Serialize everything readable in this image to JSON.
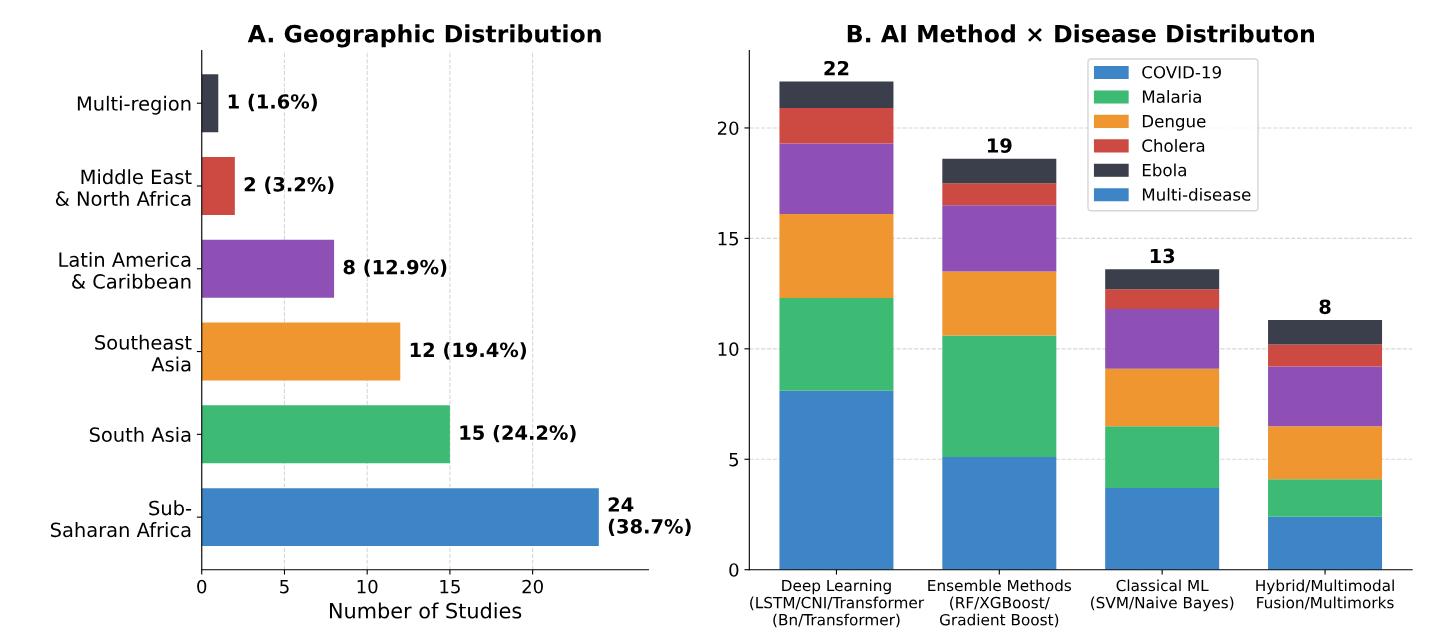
{
  "chart_data": [
    {
      "type": "bar",
      "title": "A. Geographic Distribution",
      "orientation": "horizontal",
      "xlabel": "Number of Studies",
      "categories": [
        "Multi-region",
        "Middle East\n& North Africa",
        "Latin America\n& Caribbean",
        "Southeast\nAsia",
        "South Asia",
        "Sub-\nSaharan Africa"
      ],
      "values": [
        1,
        2,
        8,
        12,
        15,
        24
      ],
      "colors": [
        "#3a3f4b",
        "#cc4a42",
        "#8e50b4",
        "#ef9630",
        "#3dba73",
        "#3d85c6"
      ],
      "value_labels": [
        "1 (1.6%)",
        "2 (3.2%)",
        "8 (12.9%)",
        "12 (19.4%)",
        "15 (24.2%)",
        "24\n(38.7%)"
      ],
      "xlim": [
        0,
        27
      ],
      "xticks": [
        0,
        5,
        10,
        15,
        20
      ],
      "grid": "x",
      "legend": false
    },
    {
      "type": "bar",
      "title": "B. AI Method × Disease Distributon",
      "stacked": true,
      "categories": [
        "Deep Learning\n(LSTM/CNI/Transformer\n(Bn/Transformer)",
        "Ensemble Methods\n(RF/XGBoost/\nGradient Boost)",
        "Classical ML\n(SVM/Naive Bayes)",
        "Hybrid/Multimodal\nFusion/Multimorks"
      ],
      "series": [
        {
          "name": "COVID-19",
          "color": "#3d85c6",
          "values": [
            8.1,
            5.1,
            3.7,
            2.4
          ]
        },
        {
          "name": "Malaria",
          "color": "#3dba73",
          "values": [
            4.2,
            5.5,
            2.8,
            1.7
          ]
        },
        {
          "name": "Dengue",
          "color": "#ef9630",
          "values": [
            3.8,
            2.9,
            2.6,
            2.4
          ]
        },
        {
          "color": "#8e50b4",
          "values": [
            3.2,
            3.0,
            2.7,
            2.7
          ]
        },
        {
          "name": "Cholera",
          "color": "#cc4a42",
          "values": [
            1.6,
            1.0,
            0.9,
            1.0
          ]
        },
        {
          "name": "Ebola",
          "color": "#3a3f4b",
          "values": [
            1.2,
            1.1,
            0.9,
            1.1
          ]
        },
        {
          "name": "Multi-disease",
          "color": "#3d85c6",
          "values": [
            null,
            null,
            null,
            null
          ]
        }
      ],
      "totals": [
        "22",
        "19",
        "13",
        "8"
      ],
      "ylim": [
        0,
        23.5
      ],
      "yticks": [
        0,
        5,
        10,
        15,
        20
      ],
      "grid": "y",
      "legend": "top right"
    }
  ]
}
